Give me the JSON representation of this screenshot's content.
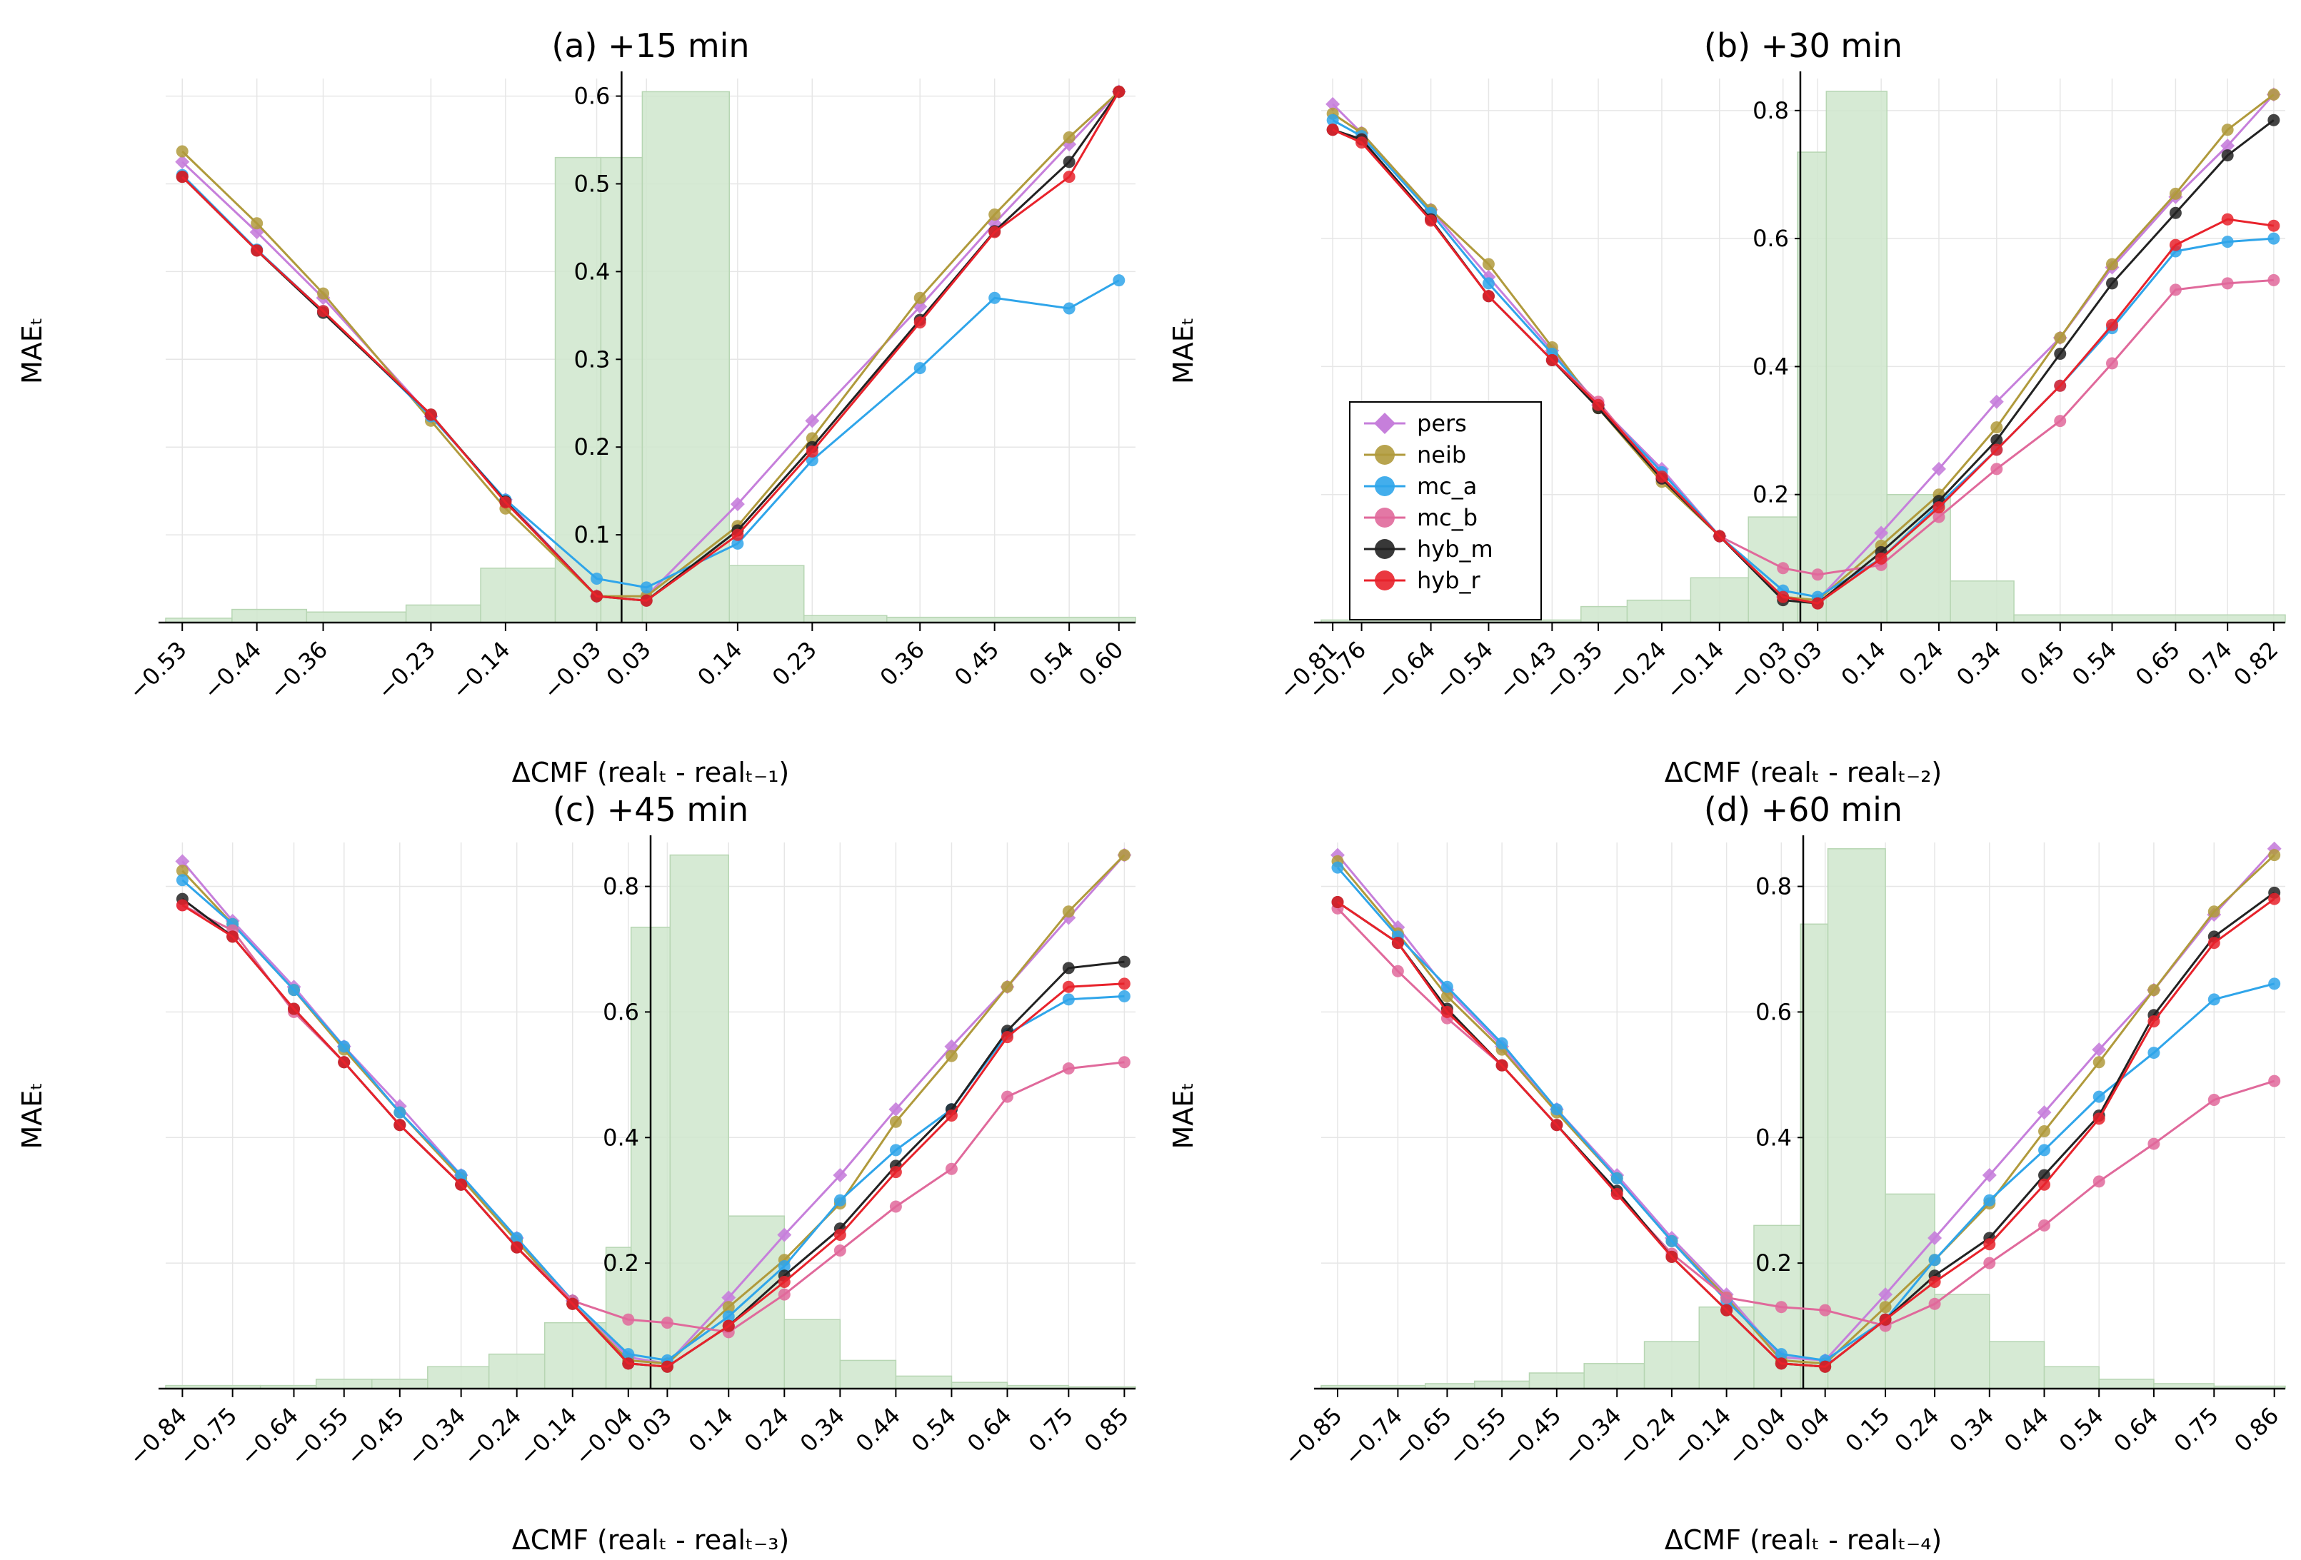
{
  "colors": {
    "pers": "#c67fdb",
    "neib": "#b09a3c",
    "mc_a": "#2fa5ea",
    "mc_b": "#e0699b",
    "hyb_m": "#222222",
    "hyb_r": "#e8222b",
    "hist": "#cfe6cc"
  },
  "legend": [
    "pers",
    "neib",
    "mc_a",
    "mc_b",
    "hyb_m",
    "hyb_r"
  ],
  "chart_data": [
    {
      "type": "line",
      "panel": "a",
      "title": "(a) +15 min",
      "xlabel": "ΔCMF (realₜ - realₜ₋₁)",
      "ylabel": "MAEₜ",
      "xlim": [
        -0.55,
        0.62
      ],
      "ylim": [
        0,
        0.62
      ],
      "yticks": [
        0.1,
        0.2,
        0.3,
        0.4,
        0.5,
        0.6
      ],
      "ytick_labels": [
        "0.1",
        "0.2",
        "0.3",
        "0.4",
        "0.5",
        "0.6"
      ],
      "x": [
        -0.53,
        -0.44,
        -0.36,
        -0.23,
        -0.14,
        -0.03,
        0.03,
        0.14,
        0.23,
        0.36,
        0.45,
        0.54,
        0.6
      ],
      "xtick_labels": [
        "−0.53",
        "−0.44",
        "−0.36",
        "−0.23",
        "−0.14",
        "−0.03",
        "0.03",
        "0.14",
        "0.23",
        "0.36",
        "0.45",
        "0.54",
        "0.60"
      ],
      "series": [
        {
          "name": "pers",
          "values": [
            0.525,
            0.445,
            0.37,
            0.235,
            0.14,
            0.03,
            0.03,
            0.135,
            0.23,
            0.36,
            0.455,
            0.545,
            0.605
          ]
        },
        {
          "name": "neib",
          "values": [
            0.537,
            0.455,
            0.375,
            0.23,
            0.13,
            0.03,
            0.03,
            0.11,
            0.21,
            0.37,
            0.465,
            0.553,
            0.605
          ]
        },
        {
          "name": "mc_a",
          "values": [
            0.51,
            0.425,
            0.355,
            0.235,
            0.14,
            0.05,
            0.04,
            0.09,
            0.185,
            0.29,
            0.37,
            0.358,
            0.39
          ]
        },
        {
          "name": "hyb_m",
          "values": [
            0.508,
            0.424,
            0.353,
            0.237,
            0.138,
            0.03,
            0.025,
            0.105,
            0.2,
            0.345,
            0.446,
            0.525,
            0.605
          ]
        },
        {
          "name": "hyb_r",
          "values": [
            0.508,
            0.424,
            0.355,
            0.237,
            0.137,
            0.03,
            0.025,
            0.1,
            0.195,
            0.342,
            0.445,
            0.508,
            0.605
          ]
        }
      ],
      "histogram": {
        "edges": [
          -0.55,
          -0.47,
          -0.38,
          -0.26,
          -0.17,
          -0.08,
          -0.025,
          0.025,
          0.13,
          0.22,
          0.32,
          0.62
        ],
        "values": [
          0.005,
          0.015,
          0.012,
          0.02,
          0.062,
          0.53,
          0.53,
          0.605,
          0.065,
          0.008,
          0.006
        ]
      }
    },
    {
      "type": "line",
      "panel": "b",
      "title": "(b) +30 min",
      "xlabel": "ΔCMF (realₜ - realₜ₋₂)",
      "ylabel": "MAEₜ",
      "xlim": [
        -0.83,
        0.84
      ],
      "ylim": [
        0,
        0.85
      ],
      "yticks": [
        0.2,
        0.4,
        0.6,
        0.8
      ],
      "ytick_labels": [
        "0.2",
        "0.4",
        "0.6",
        "0.8"
      ],
      "x": [
        -0.81,
        -0.76,
        -0.64,
        -0.54,
        -0.43,
        -0.35,
        -0.24,
        -0.14,
        -0.03,
        0.03,
        0.14,
        0.24,
        0.34,
        0.45,
        0.54,
        0.65,
        0.74,
        0.82
      ],
      "xtick_labels": [
        "−0.81",
        "−0.76",
        "−0.64",
        "−0.54",
        "−0.43",
        "−0.35",
        "−0.24",
        "−0.14",
        "−0.03",
        "0.03",
        "0.14",
        "0.24",
        "0.34",
        "0.45",
        "0.54",
        "0.65",
        "0.74",
        "0.82"
      ],
      "series": [
        {
          "name": "pers",
          "values": [
            0.81,
            0.765,
            0.645,
            0.54,
            0.425,
            0.34,
            0.24,
            0.135,
            0.04,
            0.035,
            0.14,
            0.24,
            0.345,
            0.445,
            0.555,
            0.665,
            0.745,
            0.825
          ]
        },
        {
          "name": "neib",
          "values": [
            0.795,
            0.765,
            0.645,
            0.56,
            0.43,
            0.335,
            0.22,
            0.135,
            0.04,
            0.035,
            0.12,
            0.2,
            0.305,
            0.445,
            0.56,
            0.67,
            0.77,
            0.825
          ]
        },
        {
          "name": "mc_a",
          "values": [
            0.785,
            0.76,
            0.64,
            0.53,
            0.42,
            0.34,
            0.235,
            0.135,
            0.05,
            0.04,
            0.1,
            0.185,
            0.27,
            0.37,
            0.46,
            0.58,
            0.595,
            0.6
          ]
        },
        {
          "name": "mc_b",
          "values": [
            0.77,
            0.755,
            0.63,
            0.51,
            0.41,
            0.345,
            0.225,
            0.135,
            0.085,
            0.075,
            0.09,
            0.165,
            0.24,
            0.315,
            0.405,
            0.52,
            0.53,
            0.535
          ]
        },
        {
          "name": "hyb_m",
          "values": [
            0.77,
            0.755,
            0.63,
            0.51,
            0.41,
            0.335,
            0.225,
            0.135,
            0.035,
            0.03,
            0.11,
            0.19,
            0.285,
            0.42,
            0.53,
            0.64,
            0.73,
            0.785
          ]
        },
        {
          "name": "hyb_r",
          "values": [
            0.77,
            0.75,
            0.628,
            0.51,
            0.41,
            0.34,
            0.228,
            0.135,
            0.04,
            0.03,
            0.1,
            0.18,
            0.27,
            0.37,
            0.465,
            0.59,
            0.63,
            0.62
          ]
        }
      ],
      "histogram": {
        "edges": [
          -0.83,
          -0.38,
          -0.3,
          -0.19,
          -0.09,
          -0.005,
          0.045,
          0.15,
          0.26,
          0.37,
          0.84
        ],
        "values": [
          0.004,
          0.025,
          0.035,
          0.07,
          0.165,
          0.735,
          0.83,
          0.2,
          0.065,
          0.012
        ]
      }
    },
    {
      "type": "line",
      "panel": "c",
      "title": "(c) +45 min",
      "xlabel": "ΔCMF (realₜ - realₜ₋₃)",
      "ylabel": "MAEₜ",
      "xlim": [
        -0.87,
        0.87
      ],
      "ylim": [
        0,
        0.87
      ],
      "yticks": [
        0.2,
        0.4,
        0.6,
        0.8
      ],
      "ytick_labels": [
        "0.2",
        "0.4",
        "0.6",
        "0.8"
      ],
      "x": [
        -0.84,
        -0.75,
        -0.64,
        -0.55,
        -0.45,
        -0.34,
        -0.24,
        -0.14,
        -0.04,
        0.03,
        0.14,
        0.24,
        0.34,
        0.44,
        0.54,
        0.64,
        0.75,
        0.85
      ],
      "xtick_labels": [
        "−0.84",
        "−0.75",
        "−0.64",
        "−0.55",
        "−0.45",
        "−0.34",
        "−0.24",
        "−0.14",
        "−0.04",
        "0.03",
        "0.14",
        "0.24",
        "0.34",
        "0.44",
        "0.54",
        "0.64",
        "0.75",
        "0.85"
      ],
      "series": [
        {
          "name": "pers",
          "values": [
            0.84,
            0.745,
            0.64,
            0.545,
            0.45,
            0.34,
            0.24,
            0.14,
            0.05,
            0.04,
            0.145,
            0.245,
            0.34,
            0.445,
            0.545,
            0.64,
            0.75,
            0.85
          ]
        },
        {
          "name": "neib",
          "values": [
            0.825,
            0.74,
            0.635,
            0.54,
            0.44,
            0.335,
            0.235,
            0.135,
            0.045,
            0.04,
            0.13,
            0.205,
            0.295,
            0.425,
            0.53,
            0.64,
            0.76,
            0.85
          ]
        },
        {
          "name": "mc_a",
          "values": [
            0.81,
            0.74,
            0.635,
            0.545,
            0.44,
            0.34,
            0.24,
            0.14,
            0.055,
            0.045,
            0.115,
            0.195,
            0.3,
            0.38,
            0.445,
            0.565,
            0.62,
            0.625
          ]
        },
        {
          "name": "mc_b",
          "values": [
            0.77,
            0.73,
            0.6,
            0.52,
            0.42,
            0.325,
            0.225,
            0.14,
            0.11,
            0.105,
            0.09,
            0.15,
            0.22,
            0.29,
            0.35,
            0.465,
            0.51,
            0.52
          ]
        },
        {
          "name": "hyb_m",
          "values": [
            0.78,
            0.72,
            0.605,
            0.52,
            0.42,
            0.325,
            0.225,
            0.135,
            0.04,
            0.035,
            0.1,
            0.18,
            0.255,
            0.355,
            0.445,
            0.57,
            0.67,
            0.68
          ]
        },
        {
          "name": "hyb_r",
          "values": [
            0.77,
            0.72,
            0.605,
            0.52,
            0.42,
            0.325,
            0.225,
            0.135,
            0.04,
            0.035,
            0.1,
            0.17,
            0.245,
            0.345,
            0.435,
            0.56,
            0.64,
            0.645
          ]
        }
      ],
      "histogram": {
        "edges": [
          -0.87,
          -0.7,
          -0.6,
          -0.5,
          -0.4,
          -0.29,
          -0.19,
          -0.08,
          -0.035,
          0.035,
          0.14,
          0.24,
          0.34,
          0.44,
          0.54,
          0.64,
          0.75,
          0.87
        ],
        "values": [
          0.005,
          0.005,
          0.015,
          0.015,
          0.035,
          0.055,
          0.105,
          0.225,
          0.735,
          0.85,
          0.275,
          0.11,
          0.045,
          0.02,
          0.01,
          0.005,
          0.003
        ]
      }
    },
    {
      "type": "line",
      "panel": "d",
      "title": "(d) +60 min",
      "xlabel": "ΔCMF (realₜ - realₜ₋₄)",
      "ylabel": "MAEₜ",
      "xlim": [
        -0.88,
        0.88
      ],
      "ylim": [
        0,
        0.87
      ],
      "yticks": [
        0.2,
        0.4,
        0.6,
        0.8
      ],
      "ytick_labels": [
        "0.2",
        "0.4",
        "0.6",
        "0.8"
      ],
      "x": [
        -0.85,
        -0.74,
        -0.65,
        -0.55,
        -0.45,
        -0.34,
        -0.24,
        -0.14,
        -0.04,
        0.04,
        0.15,
        0.24,
        0.34,
        0.44,
        0.54,
        0.64,
        0.75,
        0.86
      ],
      "xtick_labels": [
        "−0.85",
        "−0.74",
        "−0.65",
        "−0.55",
        "−0.45",
        "−0.34",
        "−0.24",
        "−0.14",
        "−0.04",
        "0.04",
        "0.15",
        "0.24",
        "0.34",
        "0.44",
        "0.54",
        "0.64",
        "0.75",
        "0.86"
      ],
      "series": [
        {
          "name": "pers",
          "values": [
            0.85,
            0.735,
            0.635,
            0.545,
            0.445,
            0.34,
            0.24,
            0.15,
            0.05,
            0.045,
            0.15,
            0.24,
            0.34,
            0.44,
            0.54,
            0.635,
            0.755,
            0.86
          ]
        },
        {
          "name": "neib",
          "values": [
            0.84,
            0.725,
            0.625,
            0.54,
            0.44,
            0.335,
            0.235,
            0.145,
            0.045,
            0.04,
            0.13,
            0.205,
            0.295,
            0.41,
            0.52,
            0.635,
            0.76,
            0.85
          ]
        },
        {
          "name": "mc_a",
          "values": [
            0.83,
            0.72,
            0.64,
            0.55,
            0.445,
            0.335,
            0.235,
            0.14,
            0.055,
            0.045,
            0.11,
            0.205,
            0.3,
            0.38,
            0.465,
            0.535,
            0.62,
            0.645
          ]
        },
        {
          "name": "mc_b",
          "values": [
            0.765,
            0.665,
            0.59,
            0.515,
            0.42,
            0.31,
            0.215,
            0.145,
            0.13,
            0.125,
            0.1,
            0.135,
            0.2,
            0.26,
            0.33,
            0.39,
            0.46,
            0.49
          ]
        },
        {
          "name": "hyb_m",
          "values": [
            0.775,
            0.71,
            0.605,
            0.515,
            0.42,
            0.315,
            0.21,
            0.125,
            0.04,
            0.035,
            0.11,
            0.18,
            0.24,
            0.34,
            0.435,
            0.595,
            0.72,
            0.79
          ]
        },
        {
          "name": "hyb_r",
          "values": [
            0.775,
            0.71,
            0.6,
            0.515,
            0.42,
            0.31,
            0.21,
            0.125,
            0.04,
            0.035,
            0.11,
            0.17,
            0.23,
            0.325,
            0.43,
            0.585,
            0.71,
            0.78
          ]
        }
      ],
      "histogram": {
        "edges": [
          -0.88,
          -0.69,
          -0.6,
          -0.5,
          -0.4,
          -0.29,
          -0.19,
          -0.09,
          -0.005,
          0.045,
          0.15,
          0.24,
          0.34,
          0.44,
          0.54,
          0.64,
          0.75,
          0.88
        ],
        "values": [
          0.005,
          0.008,
          0.012,
          0.025,
          0.04,
          0.075,
          0.13,
          0.26,
          0.74,
          0.86,
          0.31,
          0.15,
          0.075,
          0.035,
          0.015,
          0.008,
          0.004
        ]
      }
    }
  ]
}
